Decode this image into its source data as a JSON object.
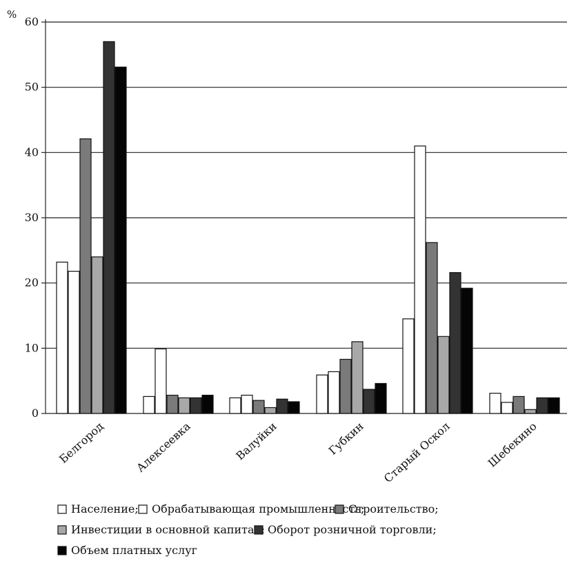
{
  "chart_data": {
    "type": "bar",
    "unit": "%",
    "categories": [
      "Белгород",
      "Алексеевка",
      "Валуйки",
      "Губкин",
      "Старый Оскол",
      "Шебекино"
    ],
    "ylim": [
      0,
      60
    ],
    "yticks": [
      0,
      10,
      20,
      30,
      40,
      50,
      60
    ],
    "grid": true,
    "series": [
      {
        "name": "Население",
        "color": "#ffffff",
        "values": [
          23.2,
          2.6,
          2.4,
          5.9,
          14.5,
          3.1
        ]
      },
      {
        "name": "Обрабатывающая промышленность",
        "color": "#ffffff",
        "values": [
          21.8,
          9.9,
          2.8,
          6.4,
          41.0,
          1.7
        ]
      },
      {
        "name": "Строительство",
        "color": "#7a7a7a",
        "values": [
          42.1,
          2.8,
          2.0,
          8.3,
          26.2,
          2.6
        ]
      },
      {
        "name": "Инвестиции в основной капитал",
        "color": "#a8a8a8",
        "values": [
          24.0,
          2.4,
          0.9,
          11.0,
          11.8,
          0.6
        ]
      },
      {
        "name": "Оборот розничной торговли",
        "color": "#333333",
        "values": [
          57.0,
          2.4,
          2.2,
          3.7,
          21.6,
          2.4
        ]
      },
      {
        "name": "Объем платных услуг",
        "color": "#050505",
        "values": [
          53.1,
          2.8,
          1.8,
          4.6,
          19.2,
          2.4
        ]
      }
    ],
    "legend": {
      "placement": "bottom",
      "lines": [
        [
          {
            "series": 0,
            "text": "Население;"
          },
          {
            "series": 1,
            "text": "Обрабатывающая промышленность;"
          },
          {
            "series": 2,
            "text": "Строительство;"
          }
        ],
        [
          {
            "series": 3,
            "text": "Инвестиции в основной капитал;"
          },
          {
            "series": 4,
            "text": "Оборот розничной торговли;"
          }
        ],
        [
          {
            "series": 5,
            "text": "Объем платных услуг"
          }
        ]
      ]
    }
  }
}
